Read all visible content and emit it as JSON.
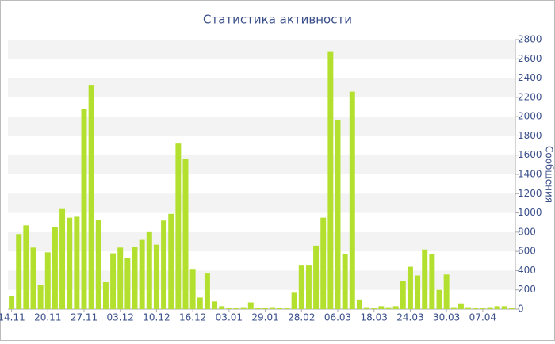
{
  "chart_data": {
    "type": "bar",
    "title": "Статистика активности",
    "y_label": "Сообщения",
    "categories": [
      "14.11",
      null,
      null,
      null,
      null,
      "20.11",
      null,
      null,
      null,
      null,
      "27.11",
      null,
      null,
      null,
      null,
      "03.12",
      null,
      null,
      null,
      null,
      "10.12",
      null,
      null,
      null,
      null,
      "16.12",
      null,
      null,
      null,
      null,
      "03.01",
      null,
      null,
      null,
      null,
      "29.01",
      null,
      null,
      null,
      null,
      "28.02",
      null,
      null,
      null,
      null,
      "06.03",
      null,
      null,
      null,
      null,
      "18.03",
      null,
      null,
      null,
      null,
      "24.03",
      null,
      null,
      null,
      null,
      "30.03",
      null,
      null,
      null,
      null,
      "07.04",
      null,
      null,
      null,
      null
    ],
    "values": [
      140,
      780,
      870,
      640,
      250,
      590,
      850,
      1040,
      950,
      960,
      2080,
      2330,
      930,
      280,
      580,
      640,
      530,
      650,
      720,
      800,
      670,
      920,
      990,
      1720,
      1560,
      410,
      120,
      370,
      80,
      30,
      10,
      10,
      20,
      70,
      10,
      10,
      20,
      10,
      10,
      170,
      460,
      460,
      660,
      950,
      2680,
      1960,
      570,
      2260,
      100,
      20,
      10,
      30,
      20,
      30,
      290,
      440,
      350,
      620,
      570,
      200,
      360,
      20,
      60,
      20,
      10,
      10,
      20,
      30,
      30,
      10
    ],
    "color": "#b3e02e",
    "ylim": [
      0,
      2800
    ],
    "yticks": [
      0,
      200,
      400,
      600,
      800,
      1000,
      1200,
      1400,
      1600,
      1800,
      2000,
      2200,
      2400,
      2600,
      2800
    ],
    "grid": true
  }
}
